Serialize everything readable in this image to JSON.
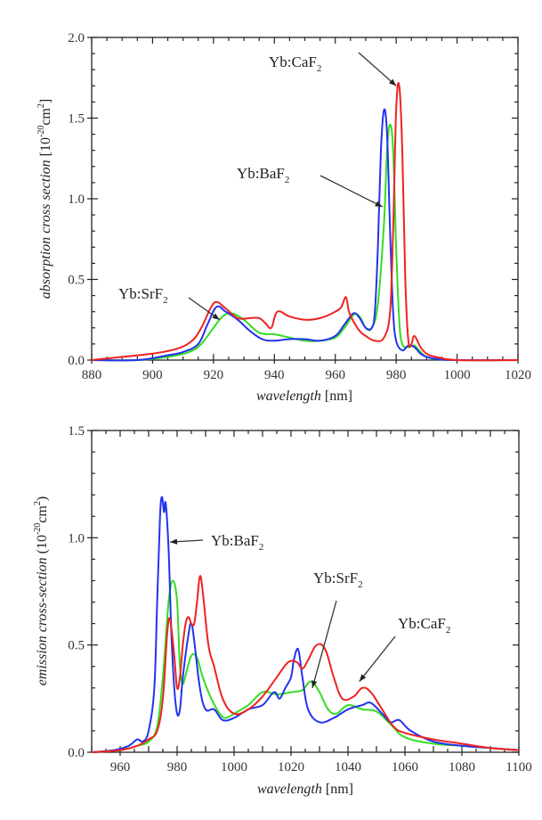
{
  "chart_data": [
    {
      "type": "line",
      "title": "",
      "xlabel": "wavelength",
      "xlabel_unit": "[nm]",
      "ylabel": "absorption cross section",
      "ylabel_unit": "[10^-20 cm^2]",
      "xlim": [
        880,
        1020
      ],
      "ylim": [
        0.0,
        2.0
      ],
      "xticks": [
        880,
        900,
        920,
        940,
        960,
        980,
        1000,
        1020
      ],
      "xtick_labels": [
        "880",
        "900",
        "920",
        "940",
        "960",
        "980",
        "1000",
        "1020"
      ],
      "yticks": [
        0.0,
        0.5,
        1.0,
        1.5,
        2.0
      ],
      "ytick_labels": [
        "0.0",
        "0.5",
        "1.0",
        "1.5",
        "2.0"
      ],
      "grid": false,
      "legend": "none",
      "series": [
        {
          "name": "Yb:SrF2",
          "color": "#33dd22",
          "x": [
            880,
            895,
            905,
            912,
            916,
            920,
            923,
            926,
            930,
            935,
            940,
            945,
            950,
            955,
            960,
            963,
            966,
            968,
            970,
            972,
            974,
            976,
            977,
            978,
            979,
            980,
            981,
            982,
            984,
            986,
            988,
            990,
            994,
            1000,
            1020
          ],
          "y": [
            0.0,
            0.0,
            0.02,
            0.05,
            0.1,
            0.2,
            0.27,
            0.29,
            0.25,
            0.17,
            0.16,
            0.14,
            0.12,
            0.12,
            0.14,
            0.2,
            0.28,
            0.27,
            0.2,
            0.2,
            0.35,
            0.85,
            1.3,
            1.46,
            1.3,
            0.7,
            0.25,
            0.1,
            0.08,
            0.09,
            0.05,
            0.02,
            0.005,
            0.0,
            0.0
          ]
        },
        {
          "name": "Yb:BaF2",
          "color": "#2233ee",
          "x": [
            880,
            895,
            905,
            910,
            915,
            918,
            921,
            924,
            928,
            932,
            936,
            940,
            945,
            950,
            955,
            960,
            963,
            966,
            968,
            970,
            972,
            973,
            974,
            975,
            976,
            977,
            978,
            979,
            980,
            982,
            984,
            986,
            988,
            990,
            994,
            1000,
            1020
          ],
          "y": [
            0.0,
            0.0,
            0.03,
            0.05,
            0.1,
            0.22,
            0.33,
            0.3,
            0.25,
            0.18,
            0.13,
            0.12,
            0.13,
            0.13,
            0.12,
            0.15,
            0.22,
            0.29,
            0.26,
            0.2,
            0.2,
            0.3,
            0.7,
            1.3,
            1.55,
            1.4,
            0.8,
            0.3,
            0.12,
            0.06,
            0.09,
            0.08,
            0.04,
            0.02,
            0.005,
            0.0,
            0.0
          ]
        },
        {
          "name": "Yb:CaF2",
          "color": "#ee2222",
          "x": [
            880,
            890,
            900,
            908,
            913,
            916,
            919,
            921,
            924,
            928,
            932,
            935,
            937,
            939,
            941,
            945,
            950,
            955,
            960,
            962,
            963.5,
            964.5,
            966,
            968,
            970,
            973,
            976,
            978,
            979,
            980,
            981,
            982,
            983,
            984,
            985,
            986,
            988,
            990,
            993,
            1000,
            1020
          ],
          "y": [
            0.0,
            0.02,
            0.04,
            0.07,
            0.12,
            0.2,
            0.32,
            0.36,
            0.32,
            0.26,
            0.26,
            0.26,
            0.23,
            0.2,
            0.3,
            0.27,
            0.25,
            0.26,
            0.3,
            0.33,
            0.39,
            0.3,
            0.24,
            0.18,
            0.15,
            0.12,
            0.14,
            0.3,
            0.8,
            1.55,
            1.7,
            1.3,
            0.5,
            0.12,
            0.1,
            0.15,
            0.08,
            0.04,
            0.02,
            0.0,
            0.0
          ]
        }
      ],
      "annotations": [
        {
          "text": "Yb:CaF",
          "sub": "2",
          "points_to": {
            "x": 980,
            "y": 1.7
          }
        },
        {
          "text": "Yb:BaF",
          "sub": "2",
          "points_to": {
            "x": 975.5,
            "y": 0.95
          }
        },
        {
          "text": "Yb:SrF",
          "sub": "2",
          "points_to": {
            "x": 922,
            "y": 0.25
          }
        }
      ]
    },
    {
      "type": "line",
      "title": "",
      "xlabel": "wavelength",
      "xlabel_unit": "[nm]",
      "ylabel": "emission cross-section",
      "ylabel_unit": "(10^-20 cm^2)",
      "xlim": [
        950,
        1100
      ],
      "ylim": [
        0.0,
        1.5
      ],
      "xticks": [
        960,
        980,
        1000,
        1020,
        1040,
        1060,
        1080,
        1100
      ],
      "xtick_labels": [
        "960",
        "980",
        "1000",
        "1020",
        "1040",
        "1060",
        "1080",
        "1100"
      ],
      "yticks": [
        0.0,
        0.5,
        1.0,
        1.5
      ],
      "ytick_labels": [
        "0.0",
        "0.5",
        "1.0",
        "1.5"
      ],
      "grid": false,
      "legend": "none",
      "series": [
        {
          "name": "Yb:SrF2",
          "color": "#33dd22",
          "x": [
            950,
            960,
            966,
            970,
            973,
            975,
            977,
            978.5,
            980,
            981,
            982,
            983,
            985,
            987,
            989,
            992,
            995,
            997,
            1000,
            1005,
            1010,
            1015,
            1020,
            1024,
            1027,
            1030,
            1033,
            1036,
            1040,
            1045,
            1050,
            1055,
            1060,
            1070,
            1080,
            1090,
            1100
          ],
          "y": [
            0.0,
            0.01,
            0.03,
            0.05,
            0.12,
            0.35,
            0.7,
            0.8,
            0.7,
            0.4,
            0.32,
            0.36,
            0.45,
            0.44,
            0.35,
            0.25,
            0.18,
            0.16,
            0.18,
            0.22,
            0.28,
            0.27,
            0.28,
            0.29,
            0.33,
            0.28,
            0.2,
            0.18,
            0.22,
            0.2,
            0.19,
            0.13,
            0.07,
            0.04,
            0.03,
            0.02,
            0.01
          ]
        },
        {
          "name": "Yb:BaF2",
          "color": "#2233ee",
          "x": [
            950,
            958,
            963,
            966,
            968,
            970,
            972,
            973,
            974,
            974.7,
            975.4,
            976,
            977,
            978,
            979,
            980,
            981,
            982,
            984,
            985,
            986,
            988,
            990,
            993,
            996,
            1000,
            1005,
            1010,
            1014,
            1016,
            1018,
            1020,
            1021,
            1022.5,
            1024,
            1026,
            1030,
            1035,
            1040,
            1045,
            1048,
            1052,
            1055,
            1058,
            1062,
            1070,
            1080,
            1090,
            1100
          ],
          "y": [
            0.0,
            0.01,
            0.03,
            0.06,
            0.05,
            0.1,
            0.3,
            0.7,
            1.1,
            1.19,
            1.12,
            1.16,
            0.95,
            0.55,
            0.3,
            0.18,
            0.2,
            0.35,
            0.55,
            0.6,
            0.52,
            0.3,
            0.2,
            0.2,
            0.15,
            0.16,
            0.2,
            0.22,
            0.28,
            0.25,
            0.3,
            0.35,
            0.43,
            0.48,
            0.35,
            0.2,
            0.14,
            0.16,
            0.2,
            0.22,
            0.23,
            0.18,
            0.14,
            0.15,
            0.1,
            0.05,
            0.03,
            0.02,
            0.01
          ]
        },
        {
          "name": "Yb:CaF2",
          "color": "#ee2222",
          "x": [
            950,
            960,
            966,
            970,
            973,
            975,
            976.5,
            977.5,
            979,
            980,
            981,
            982,
            983,
            984,
            985,
            986,
            987,
            988,
            989,
            991,
            993,
            996,
            1000,
            1005,
            1010,
            1015,
            1019,
            1022,
            1024,
            1026,
            1029,
            1032,
            1035,
            1038,
            1042,
            1045,
            1048,
            1052,
            1056,
            1060,
            1070,
            1080,
            1090,
            1100
          ],
          "y": [
            0.0,
            0.01,
            0.03,
            0.06,
            0.1,
            0.25,
            0.55,
            0.62,
            0.45,
            0.3,
            0.35,
            0.5,
            0.6,
            0.63,
            0.6,
            0.6,
            0.7,
            0.82,
            0.75,
            0.5,
            0.4,
            0.25,
            0.18,
            0.2,
            0.26,
            0.35,
            0.42,
            0.42,
            0.39,
            0.43,
            0.5,
            0.48,
            0.35,
            0.25,
            0.26,
            0.3,
            0.28,
            0.2,
            0.12,
            0.09,
            0.06,
            0.04,
            0.02,
            0.01
          ]
        }
      ],
      "annotations": [
        {
          "text": "Yb:BaF",
          "sub": "2",
          "points_to": {
            "x": 977.5,
            "y": 0.98
          }
        },
        {
          "text": "Yb:SrF",
          "sub": "2",
          "points_to": {
            "x": 1027.5,
            "y": 0.3
          }
        },
        {
          "text": "Yb:CaF",
          "sub": "2",
          "points_to": {
            "x": 1044,
            "y": 0.33
          }
        }
      ]
    }
  ]
}
